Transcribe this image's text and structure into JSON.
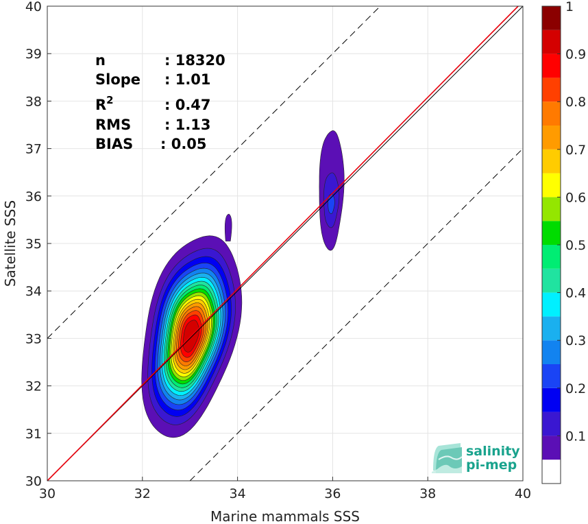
{
  "chart_data": {
    "type": "contour",
    "xlabel": "Marine mammals SSS",
    "ylabel": "Satellite SSS",
    "xlim": [
      30,
      40
    ],
    "ylim": [
      30,
      40
    ],
    "xticks": [
      30,
      32,
      34,
      36,
      38,
      40
    ],
    "yticks": [
      30,
      31,
      32,
      33,
      34,
      35,
      36,
      37,
      38,
      39,
      40
    ],
    "grid": true,
    "stats": [
      {
        "name": "n",
        "value": ": 18320"
      },
      {
        "name": "Slope",
        "value": ": 1.01"
      },
      {
        "name": "R",
        "sup": "2",
        "value": ": 0.47"
      },
      {
        "name": "RMS",
        "value": ": 1.13"
      },
      {
        "name": "BIAS",
        "value": ": 0.05"
      }
    ],
    "reference_lines": [
      {
        "kind": "identity",
        "slope": 1,
        "intercept": 0,
        "color": "#000000",
        "style": "solid"
      },
      {
        "kind": "regression",
        "slope": 1.01,
        "intercept": -0.3,
        "color": "#e8000b",
        "style": "solid"
      },
      {
        "kind": "offset",
        "slope": 1,
        "intercept": 3,
        "color": "#000000",
        "style": "dashed"
      },
      {
        "kind": "offset",
        "slope": 1,
        "intercept": -3,
        "color": "#000000",
        "style": "dashed"
      }
    ],
    "density_peaks": [
      {
        "x": 33.0,
        "y": 33.05,
        "max_level": 0.95
      },
      {
        "x": 35.97,
        "y": 35.85,
        "max_level": 0.25
      }
    ],
    "colorbar": {
      "ticks": [
        "0.1",
        "0.2",
        "0.3",
        "0.4",
        "0.5",
        "0.6",
        "0.7",
        "0.8",
        "0.9",
        "1"
      ],
      "levels": [
        {
          "from": 0.0,
          "to": 0.05,
          "color": "#ffffff"
        },
        {
          "from": 0.05,
          "to": 0.1,
          "color": "#5b0fb5"
        },
        {
          "from": 0.1,
          "to": 0.15,
          "color": "#3a17d1"
        },
        {
          "from": 0.15,
          "to": 0.2,
          "color": "#0000f2"
        },
        {
          "from": 0.2,
          "to": 0.25,
          "color": "#1a44f5"
        },
        {
          "from": 0.25,
          "to": 0.3,
          "color": "#1283f0"
        },
        {
          "from": 0.3,
          "to": 0.35,
          "color": "#1ab0ef"
        },
        {
          "from": 0.35,
          "to": 0.4,
          "color": "#00f0ff"
        },
        {
          "from": 0.4,
          "to": 0.45,
          "color": "#20e3a0"
        },
        {
          "from": 0.45,
          "to": 0.5,
          "color": "#00ed73"
        },
        {
          "from": 0.5,
          "to": 0.55,
          "color": "#00dc00"
        },
        {
          "from": 0.55,
          "to": 0.6,
          "color": "#94e600"
        },
        {
          "from": 0.6,
          "to": 0.65,
          "color": "#ffff00"
        },
        {
          "from": 0.65,
          "to": 0.7,
          "color": "#ffcc00"
        },
        {
          "from": 0.7,
          "to": 0.75,
          "color": "#ff9b00"
        },
        {
          "from": 0.75,
          "to": 0.8,
          "color": "#ff7a00"
        },
        {
          "from": 0.8,
          "to": 0.85,
          "color": "#ff4000"
        },
        {
          "from": 0.85,
          "to": 0.9,
          "color": "#ff0000"
        },
        {
          "from": 0.9,
          "to": 0.95,
          "color": "#d40000"
        },
        {
          "from": 0.95,
          "to": 1.0,
          "color": "#8b0000"
        }
      ]
    }
  },
  "logo": {
    "line1": "salinity",
    "line2": "pi-mep",
    "color": "#19a38d"
  }
}
